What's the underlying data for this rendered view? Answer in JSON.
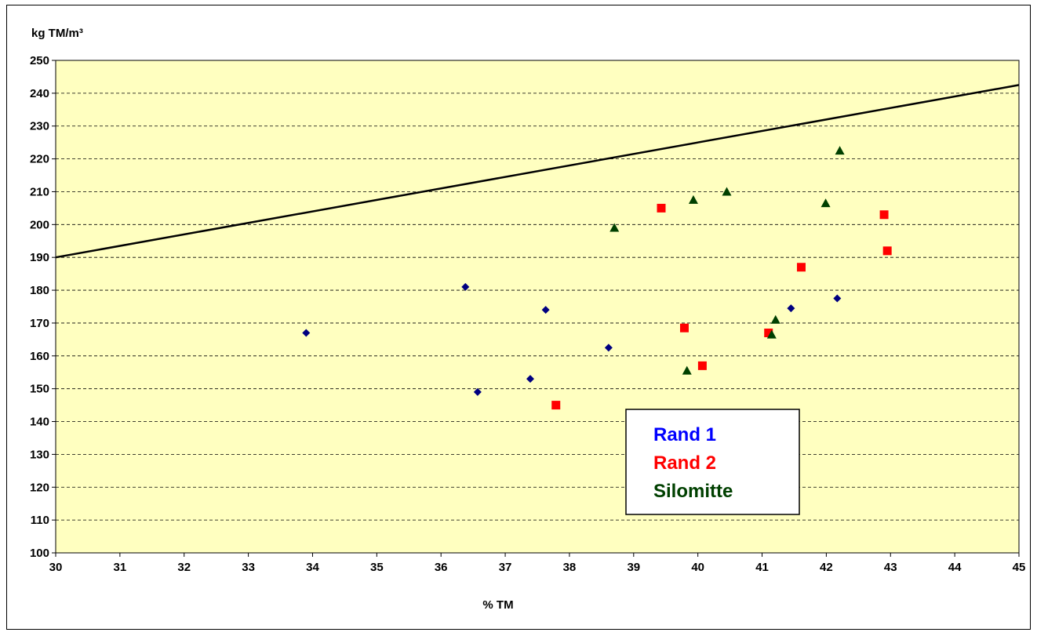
{
  "chart_data": {
    "type": "scatter",
    "title": "",
    "xlabel": "% TM",
    "ylabel": "kg TM/m³",
    "xlim": [
      30,
      45
    ],
    "ylim": [
      100,
      250
    ],
    "x_ticks": [
      30,
      31,
      32,
      33,
      34,
      35,
      36,
      37,
      38,
      39,
      40,
      41,
      42,
      43,
      44,
      45
    ],
    "y_ticks": [
      100,
      110,
      120,
      130,
      140,
      150,
      160,
      170,
      180,
      190,
      200,
      210,
      220,
      230,
      240,
      250
    ],
    "grid": "horizontal dashed",
    "legend_position": "bottom-center",
    "plot_background": "#ffffc0",
    "series": [
      {
        "name": "Rand 1",
        "marker": "diamond",
        "color": "#000080",
        "label_color": "#0000ff",
        "points": [
          [
            33.9,
            167
          ],
          [
            36.38,
            181
          ],
          [
            36.57,
            149
          ],
          [
            37.39,
            153
          ],
          [
            37.63,
            174
          ],
          [
            38.61,
            162.5
          ],
          [
            41.45,
            174.5
          ],
          [
            42.17,
            177.5
          ]
        ]
      },
      {
        "name": "Rand 2",
        "marker": "square",
        "color": "#ff0000",
        "label_color": "#ff0000",
        "points": [
          [
            37.79,
            145
          ],
          [
            39.43,
            205
          ],
          [
            39.79,
            168.5
          ],
          [
            40.07,
            157
          ],
          [
            41.1,
            167
          ],
          [
            41.61,
            187
          ],
          [
            42.9,
            203
          ],
          [
            42.95,
            192
          ]
        ]
      },
      {
        "name": "Silomitte",
        "marker": "triangle",
        "color": "#004000",
        "label_color": "#004000",
        "points": [
          [
            38.7,
            199
          ],
          [
            39.83,
            155.5
          ],
          [
            39.93,
            207.5
          ],
          [
            40.45,
            210
          ],
          [
            41.15,
            166.5
          ],
          [
            41.21,
            171
          ],
          [
            41.99,
            206.5
          ],
          [
            42.21,
            222.5
          ]
        ]
      }
    ],
    "reference_line": {
      "color": "#000000",
      "points": [
        [
          30,
          190
        ],
        [
          45,
          242.5
        ]
      ]
    }
  }
}
